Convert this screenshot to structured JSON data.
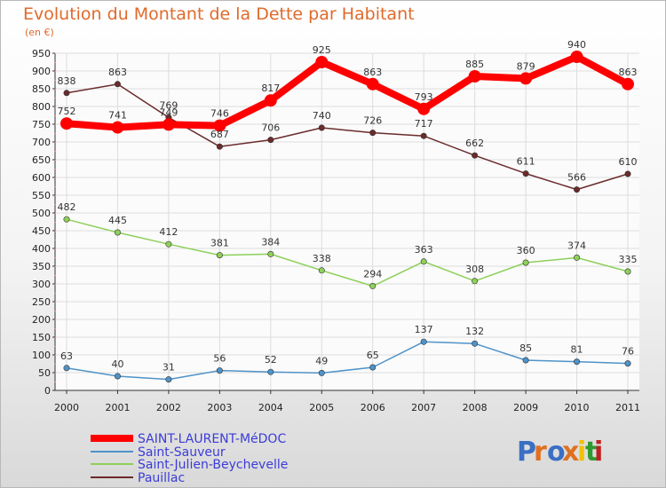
{
  "chart_data": {
    "type": "line",
    "title": "Evolution du Montant de la Dette par Habitant",
    "subtitle": "(en €)",
    "xlabel": "",
    "ylabel": "",
    "categories": [
      "2000",
      "2001",
      "2002",
      "2003",
      "2004",
      "2005",
      "2006",
      "2007",
      "2008",
      "2009",
      "2010",
      "2011"
    ],
    "ylim": [
      0,
      950
    ],
    "yticks": [
      0,
      50,
      100,
      150,
      200,
      250,
      300,
      350,
      400,
      450,
      500,
      550,
      600,
      650,
      700,
      750,
      800,
      850,
      900,
      950
    ],
    "grid": true,
    "legend_position": "bottom-left",
    "series": [
      {
        "name": "SAINT-LAURENT-MéDOC",
        "color": "#ff0000",
        "values": [
          752,
          741,
          749,
          746,
          817,
          925,
          863,
          793,
          885,
          879,
          940,
          863
        ]
      },
      {
        "name": "Saint-Sauveur",
        "color": "#4f93c9",
        "values": [
          63,
          40,
          31,
          56,
          52,
          49,
          65,
          137,
          132,
          85,
          81,
          76
        ]
      },
      {
        "name": "Saint-Julien-Beychevelle",
        "color": "#8ed05a",
        "values": [
          482,
          445,
          412,
          381,
          384,
          338,
          294,
          363,
          308,
          360,
          374,
          335
        ]
      },
      {
        "name": "Pauillac",
        "color": "#6b2b2b",
        "values": [
          838,
          863,
          769,
          687,
          706,
          740,
          726,
          717,
          662,
          611,
          566,
          610
        ]
      }
    ]
  },
  "logo": {
    "text": "Proxiti",
    "letter_colors": [
      "#3a6fc4",
      "#e07020",
      "#3a6fc4",
      "#e07020",
      "#f2c200",
      "#2f9a2f",
      "#c02020"
    ]
  }
}
